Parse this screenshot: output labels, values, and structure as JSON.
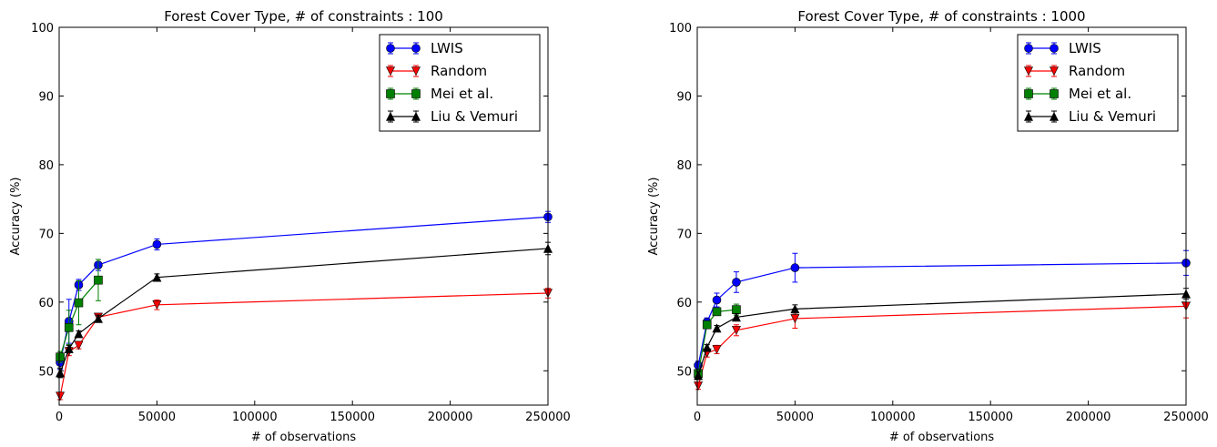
{
  "chart_data": [
    {
      "type": "line",
      "title": "Forest Cover Type, # of constraints : 100",
      "xlabel": "# of observations",
      "ylabel": "Accuracy (%)",
      "xlim": [
        0,
        250000
      ],
      "ylim": [
        45,
        100
      ],
      "xticks": [
        0,
        50000,
        100000,
        150000,
        200000,
        250000
      ],
      "yticks": [
        50,
        60,
        70,
        80,
        90,
        100
      ],
      "legend_position": "top-right",
      "grid": false,
      "series": [
        {
          "name": "LWIS",
          "marker": "circle",
          "color": "#0000ff",
          "x": [
            500,
            5000,
            10000,
            20000,
            50000,
            250000
          ],
          "y": [
            51.2,
            57.2,
            62.5,
            65.4,
            68.4,
            72.4
          ],
          "err": [
            1.0,
            3.2,
            0.8,
            0.8,
            0.8,
            0.8
          ]
        },
        {
          "name": "Random",
          "marker": "triangle-down",
          "color": "#ff0000",
          "x": [
            500,
            5000,
            10000,
            20000,
            50000,
            250000
          ],
          "y": [
            46.3,
            52.8,
            53.7,
            57.8,
            59.6,
            61.3
          ],
          "err": [
            0.5,
            0.6,
            0.5,
            0.5,
            0.7,
            0.7
          ]
        },
        {
          "name": "Mei et al.",
          "marker": "square",
          "color": "#008000",
          "x": [
            500,
            5000,
            10000,
            20000
          ],
          "y": [
            52.0,
            56.3,
            59.9,
            63.2
          ],
          "err": [
            0.8,
            2.5,
            3.2,
            3.0
          ]
        },
        {
          "name": "Liu & Vemuri",
          "marker": "triangle-up",
          "color": "#000000",
          "x": [
            500,
            5000,
            10000,
            20000,
            50000,
            250000
          ],
          "y": [
            49.7,
            53.2,
            55.4,
            57.6,
            63.6,
            67.8
          ],
          "err": [
            0.7,
            0.5,
            0.4,
            0.5,
            0.5,
            0.9
          ]
        }
      ]
    },
    {
      "type": "line",
      "title": "Forest Cover Type, # of constraints : 1000",
      "xlabel": "# of observations",
      "ylabel": "Accuracy (%)",
      "xlim": [
        0,
        250000
      ],
      "ylim": [
        45,
        100
      ],
      "xticks": [
        0,
        50000,
        100000,
        150000,
        200000,
        250000
      ],
      "yticks": [
        50,
        60,
        70,
        80,
        90,
        100
      ],
      "legend_position": "top-right",
      "grid": false,
      "series": [
        {
          "name": "LWIS",
          "marker": "circle",
          "color": "#0000ff",
          "x": [
            500,
            5000,
            10000,
            20000,
            50000,
            250000
          ],
          "y": [
            50.8,
            57.1,
            60.3,
            62.9,
            65.0,
            65.7
          ],
          "err": [
            0.6,
            0.6,
            1.0,
            1.5,
            2.1,
            1.8
          ]
        },
        {
          "name": "Random",
          "marker": "triangle-down",
          "color": "#ff0000",
          "x": [
            500,
            5000,
            10000,
            20000,
            50000,
            250000
          ],
          "y": [
            47.8,
            52.6,
            53.1,
            55.9,
            57.6,
            59.4
          ],
          "err": [
            0.5,
            0.6,
            0.6,
            0.8,
            1.4,
            1.7
          ]
        },
        {
          "name": "Mei et al.",
          "marker": "square",
          "color": "#008000",
          "x": [
            500,
            5000,
            10000,
            20000
          ],
          "y": [
            49.6,
            56.7,
            58.6,
            58.9
          ],
          "err": [
            0.5,
            0.5,
            0.5,
            0.8
          ]
        },
        {
          "name": "Liu & Vemuri",
          "marker": "triangle-up",
          "color": "#000000",
          "x": [
            500,
            5000,
            10000,
            20000,
            50000,
            250000
          ],
          "y": [
            49.3,
            53.4,
            56.2,
            57.8,
            59.0,
            61.2
          ],
          "err": [
            0.6,
            0.4,
            0.4,
            0.5,
            0.6,
            0.8
          ]
        }
      ]
    }
  ]
}
